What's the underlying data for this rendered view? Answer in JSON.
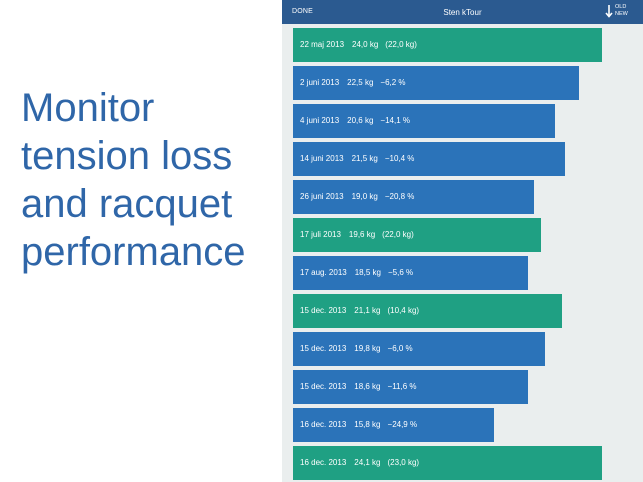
{
  "promo": {
    "lines": [
      "Monitor",
      "tension loss",
      "and racquet",
      "performance"
    ]
  },
  "navbar": {
    "done_label": "DONE",
    "title": "Sten kTour",
    "sort_old": "OLD",
    "sort_new": "NEW"
  },
  "colors": {
    "green": "#1fa083",
    "blue": "#2b73b9",
    "navbar": "#2b5a90",
    "promo_text": "#2f66a8"
  },
  "entries": [
    {
      "date": "22 maj 2013",
      "tension": "24,0 kg",
      "change": "(22,0 kg)",
      "type": "restring",
      "level": 0.91
    },
    {
      "date": "2 juni 2013",
      "tension": "22,5 kg",
      "change": "−6,2 %",
      "type": "measure",
      "level": 0.84
    },
    {
      "date": "4 juni 2013",
      "tension": "20,6 kg",
      "change": "−14,1 %",
      "type": "measure",
      "level": 0.77
    },
    {
      "date": "14 juni 2013",
      "tension": "21,5 kg",
      "change": "−10,4 %",
      "type": "measure",
      "level": 0.8
    },
    {
      "date": "26 juni 2013",
      "tension": "19,0 kg",
      "change": "−20,8 %",
      "type": "measure",
      "level": 0.71
    },
    {
      "date": "17 juli 2013",
      "tension": "19,6 kg",
      "change": "(22,0 kg)",
      "type": "restring",
      "level": 0.73
    },
    {
      "date": "17 aug. 2013",
      "tension": "18,5 kg",
      "change": "−5,6 %",
      "type": "measure",
      "level": 0.69
    },
    {
      "date": "15 dec. 2013",
      "tension": "21,1 kg",
      "change": "(10,4 kg)",
      "type": "restring",
      "level": 0.79
    },
    {
      "date": "15 dec. 2013",
      "tension": "19,8 kg",
      "change": "−6,0 %",
      "type": "measure",
      "level": 0.74
    },
    {
      "date": "15 dec. 2013",
      "tension": "18,6 kg",
      "change": "−11,6 %",
      "type": "measure",
      "level": 0.69
    },
    {
      "date": "16 dec. 2013",
      "tension": "15,8 kg",
      "change": "−24,9 %",
      "type": "measure",
      "level": 0.59
    },
    {
      "date": "16 dec. 2013",
      "tension": "24,1 kg",
      "change": "(23,0 kg)",
      "type": "restring",
      "level": 0.91
    }
  ]
}
